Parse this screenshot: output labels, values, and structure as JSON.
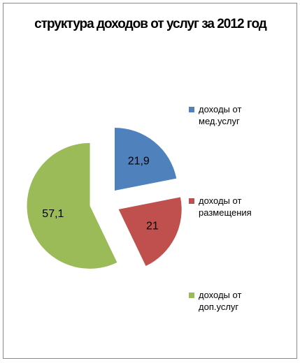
{
  "chart_data": {
    "type": "pie",
    "title": "структура доходов от услуг за 2012 год",
    "categories": [
      "доходы от мед.услуг",
      "доходы от размещения",
      "доходы от доп.услуг"
    ],
    "values": [
      21.9,
      21,
      57.1
    ],
    "value_labels": [
      "21,9",
      "21",
      "57,1"
    ],
    "colors": [
      "#4f81bd",
      "#c0504d",
      "#9bbb59"
    ],
    "legend": "right"
  }
}
